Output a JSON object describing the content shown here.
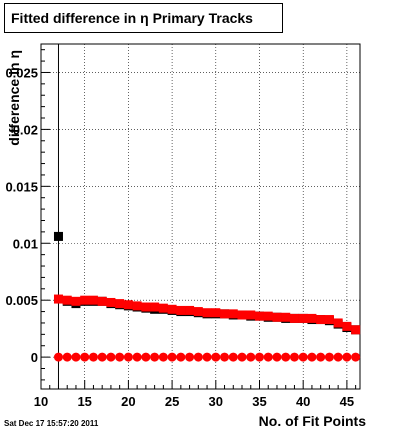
{
  "title": "Fitted difference in  η Primary Tracks",
  "timestamp": "Sat Dec 17 15:57:20 2011",
  "chart_data": {
    "type": "scatter",
    "title": "Fitted difference in  η Primary Tracks",
    "xlabel": "No. of Fit Points",
    "ylabel": "difference in η",
    "xlim": [
      10,
      46.5
    ],
    "ylim": [
      -0.0028,
      0.0275
    ],
    "xticks": [
      10,
      15,
      20,
      25,
      30,
      35,
      40,
      45
    ],
    "xtick_labels": [
      "10",
      "15",
      "20",
      "25",
      "30",
      "35",
      "40",
      "45"
    ],
    "yticks": [
      0,
      0.005,
      0.01,
      0.015,
      0.02,
      0.025
    ],
    "ytick_labels": [
      "0",
      "0.005",
      "0.01",
      "0.015",
      "0.02",
      "0.025"
    ],
    "grid": true,
    "vertical_line_x": 12,
    "series": [
      {
        "color": "#000000",
        "marker": "square",
        "x": [
          12,
          13,
          14,
          15,
          16,
          17,
          18,
          19,
          20,
          21,
          22,
          23,
          24,
          25,
          26,
          27,
          28,
          29,
          30,
          31,
          32,
          33,
          34,
          35,
          36,
          37,
          38,
          39,
          40,
          41,
          42,
          43,
          44,
          45,
          46
        ],
        "y": [
          0.0106,
          0.0049,
          0.0047,
          0.0049,
          0.0049,
          0.0049,
          0.0047,
          0.0046,
          0.0045,
          0.0044,
          0.0043,
          0.0042,
          0.0042,
          0.0041,
          0.004,
          0.004,
          0.0039,
          0.0038,
          0.0038,
          0.0038,
          0.0037,
          0.0037,
          0.0036,
          0.0036,
          0.0035,
          0.0035,
          0.0034,
          0.0034,
          0.0034,
          0.0033,
          0.0033,
          0.0032,
          0.0029,
          0.0026,
          0.0024
        ]
      },
      {
        "color": "#ff0000",
        "marker": "square",
        "x": [
          12,
          13,
          14,
          15,
          16,
          17,
          18,
          19,
          20,
          21,
          22,
          23,
          24,
          25,
          26,
          27,
          28,
          29,
          30,
          31,
          32,
          33,
          34,
          35,
          36,
          37,
          38,
          39,
          40,
          41,
          42,
          43,
          44,
          45,
          46
        ],
        "y": [
          0.0051,
          0.005,
          0.0049,
          0.005,
          0.005,
          0.0049,
          0.0048,
          0.0047,
          0.0046,
          0.0045,
          0.0044,
          0.0044,
          0.0043,
          0.0042,
          0.0041,
          0.0041,
          0.004,
          0.0039,
          0.0039,
          0.0038,
          0.0038,
          0.0037,
          0.0037,
          0.0036,
          0.0036,
          0.0035,
          0.0035,
          0.0034,
          0.0034,
          0.0034,
          0.0033,
          0.0033,
          0.003,
          0.0027,
          0.0024
        ]
      },
      {
        "color": "#ff0000",
        "marker": "circle",
        "x": [
          12,
          13,
          14,
          15,
          16,
          17,
          18,
          19,
          20,
          21,
          22,
          23,
          24,
          25,
          26,
          27,
          28,
          29,
          30,
          31,
          32,
          33,
          34,
          35,
          36,
          37,
          38,
          39,
          40,
          41,
          42,
          43,
          44,
          45,
          46
        ],
        "y": [
          0,
          0,
          0,
          0,
          0,
          0,
          0,
          0,
          0,
          0,
          0,
          0,
          0,
          0,
          0,
          0,
          0,
          0,
          0,
          0,
          0,
          0,
          0,
          0,
          0,
          0,
          0,
          0,
          0,
          0,
          0,
          0,
          0,
          0,
          0
        ]
      }
    ]
  }
}
